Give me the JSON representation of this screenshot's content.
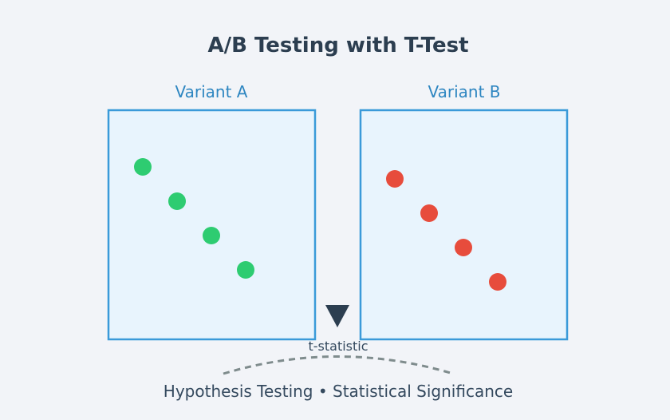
{
  "title": "A/B Testing with T-Test",
  "variants": [
    {
      "label": "Variant A",
      "dot_color": "#2ecc71",
      "dot_count": 4
    },
    {
      "label": "Variant B",
      "dot_color": "#e74c3c",
      "dot_count": 4
    }
  ],
  "indicator": {
    "label": "t-statistic",
    "icon": "down-triangle-icon"
  },
  "footer": "Hypothesis Testing • Statistical Significance",
  "colors": {
    "background": "#f2f4f8",
    "panel_fill": "#e8f4fd",
    "panel_stroke": "#3a9ad9",
    "variant_label": "#2e86c1",
    "title": "#2c3e50",
    "text": "#34495e",
    "arc": "#7f8c8d"
  }
}
